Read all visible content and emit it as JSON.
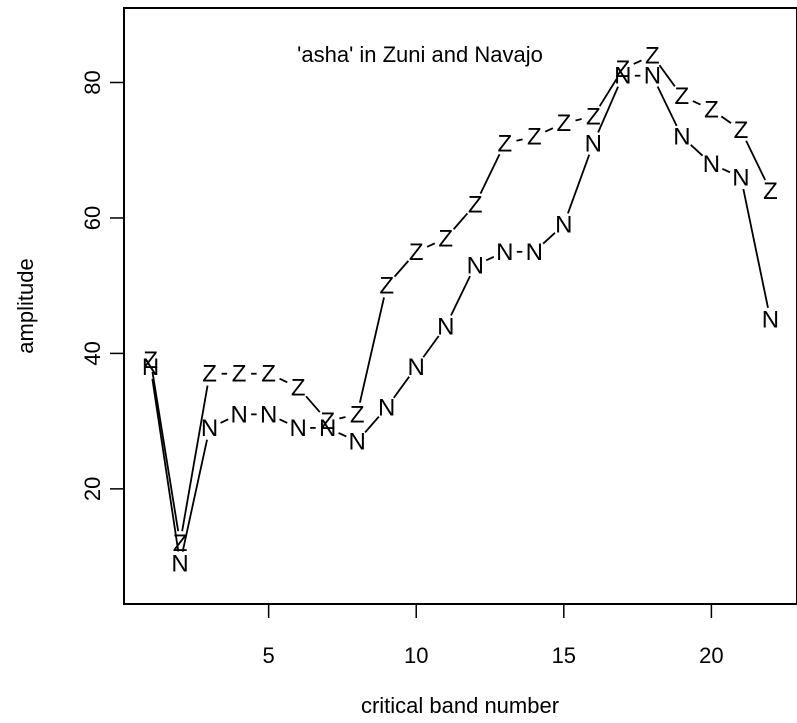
{
  "chart_data": {
    "type": "line",
    "title": "'asha' in Zuni and Navajo",
    "xlabel": "critical band number",
    "ylabel": "amplitude",
    "xlim": [
      0.1,
      22.9
    ],
    "ylim": [
      3,
      91
    ],
    "xticks": [
      "5",
      "10",
      "15",
      "20"
    ],
    "yticks": [
      "20",
      "40",
      "60",
      "80"
    ],
    "x": [
      1,
      2,
      3,
      4,
      5,
      6,
      7,
      8,
      9,
      10,
      11,
      12,
      13,
      14,
      15,
      16,
      17,
      18,
      19,
      20,
      21,
      22
    ],
    "series": [
      {
        "name": "Z",
        "symbol": "Z",
        "values": [
          39,
          12,
          37,
          37,
          37,
          35,
          30,
          31,
          50,
          55,
          57,
          62,
          71,
          72,
          74,
          75,
          82,
          84,
          78,
          76,
          73,
          64
        ]
      },
      {
        "name": "N",
        "symbol": "N",
        "values": [
          38,
          9,
          29,
          31,
          31,
          29,
          29,
          27,
          32,
          38,
          44,
          53,
          55,
          55,
          59,
          71,
          81,
          81,
          72,
          68,
          66,
          45
        ]
      }
    ]
  }
}
